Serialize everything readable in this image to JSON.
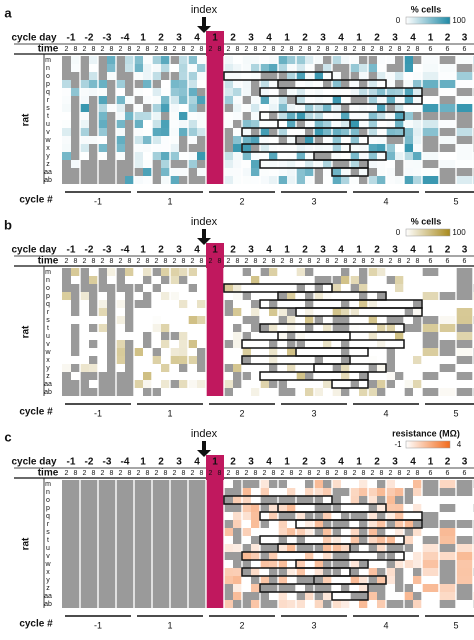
{
  "panel_letters": [
    "a",
    "b",
    "c"
  ],
  "index_label": "index",
  "row_labels": {
    "cycle_day": "cycle day",
    "time": "time",
    "rat": "rat",
    "cycle_num": "cycle #"
  },
  "cycle_days": [
    "-1",
    "-2",
    "-3",
    "-4",
    "1",
    "2",
    "3",
    "4",
    "1",
    "2",
    "3",
    "4",
    "1",
    "2",
    "3",
    "4",
    "1",
    "2",
    "3",
    "4",
    "1",
    "2",
    "3",
    "4"
  ],
  "time_values": [
    "2",
    "8",
    "2",
    "8",
    "2",
    "8",
    "2",
    "8",
    "2",
    "8",
    "2",
    "8",
    "2",
    "8",
    "2",
    "8",
    "2",
    "8",
    "2",
    "8",
    "2",
    "8",
    "2",
    "8",
    "2",
    "8",
    "2",
    "8",
    "2",
    "8",
    "2",
    "8",
    "2",
    "8",
    "2",
    "8",
    "2",
    "8",
    "2",
    "8",
    "6",
    "6",
    "6",
    "6"
  ],
  "rats": [
    "m",
    "n",
    "o",
    "p",
    "q",
    "r",
    "s",
    "t",
    "u",
    "v",
    "w",
    "x",
    "y",
    "z",
    "aa",
    "ab"
  ],
  "cycle_numbers": [
    "-1",
    "1",
    "2",
    "3",
    "4",
    "5"
  ],
  "legends": [
    {
      "title": "% cells",
      "min": "0",
      "max": "100",
      "color": "#1f8aa6"
    },
    {
      "title": "% cells",
      "min": "0",
      "max": "100",
      "color": "#a88a1c"
    },
    {
      "title": "resistance (MΩ)",
      "min": "-1",
      "max": "4",
      "color": "#f26a1b"
    }
  ],
  "colors": {
    "missing": "#9a9a9a",
    "index": "#c0185e",
    "text": "#111111"
  },
  "chart_data": {
    "type": "heatmap",
    "note_rows": "rats m..ab",
    "panels": [
      "a",
      "b",
      "c"
    ]
  }
}
